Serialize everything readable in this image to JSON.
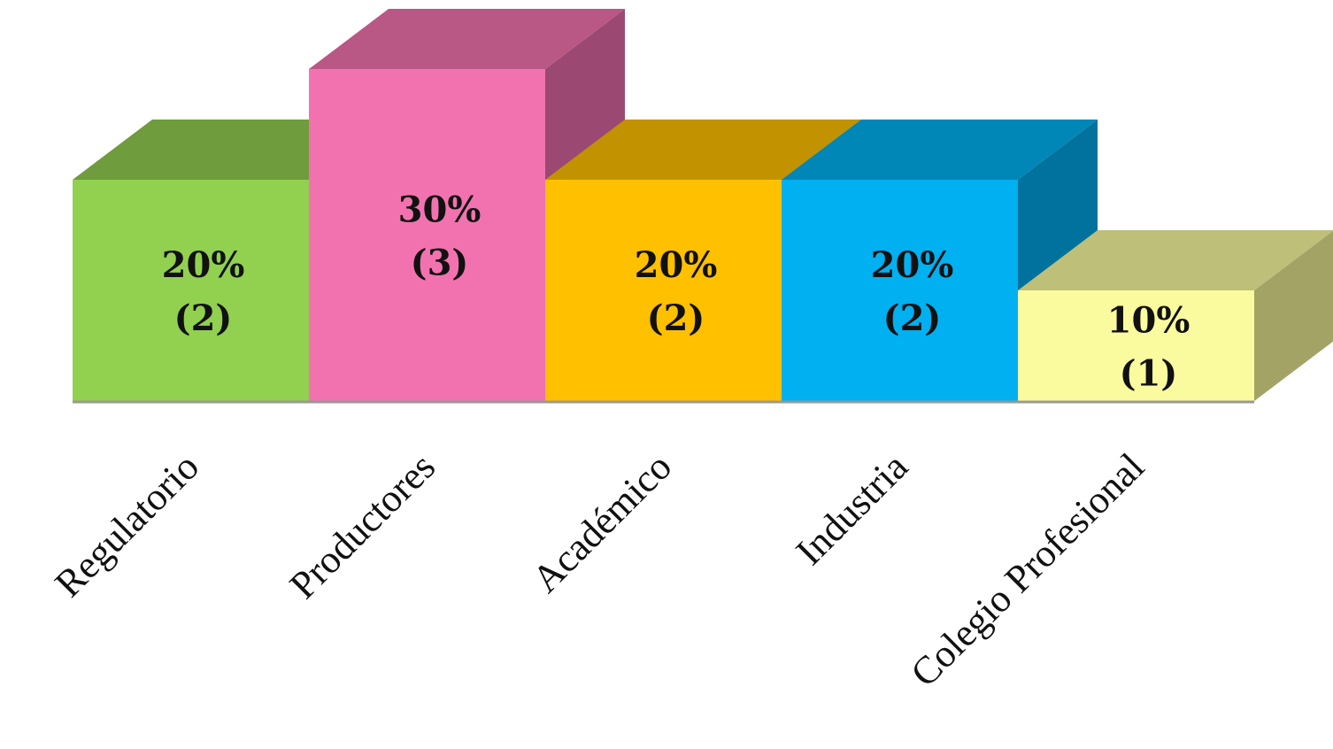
{
  "chart_data": {
    "type": "bar",
    "style": "3d",
    "title": "",
    "xlabel": "",
    "ylabel": "",
    "ylim": [
      0,
      30
    ],
    "grid": false,
    "legend": "none",
    "categories": [
      "Regulatorio",
      "Productores",
      "Académico",
      "Industria",
      "Colegio Profesional"
    ],
    "values": [
      20,
      30,
      20,
      20,
      10
    ],
    "counts": [
      2,
      3,
      2,
      2,
      1
    ],
    "value_labels": [
      "20%",
      "30%",
      "20%",
      "20%",
      "10%"
    ],
    "count_labels": [
      "(2)",
      "(3)",
      "(2)",
      "(2)",
      "(1)"
    ],
    "colors": {
      "front": [
        "#92D050",
        "#F272AF",
        "#FFC000",
        "#00B0F0",
        "#FAFB9E"
      ],
      "top": [
        "#6F9C3C",
        "#B95785",
        "#C29200",
        "#0086B7",
        "#BEBF78"
      ],
      "side": [
        "#5F8634",
        "#9B4972",
        "#A67D00",
        "#00729D",
        "#A3A366"
      ],
      "baseline": "#999999"
    }
  }
}
